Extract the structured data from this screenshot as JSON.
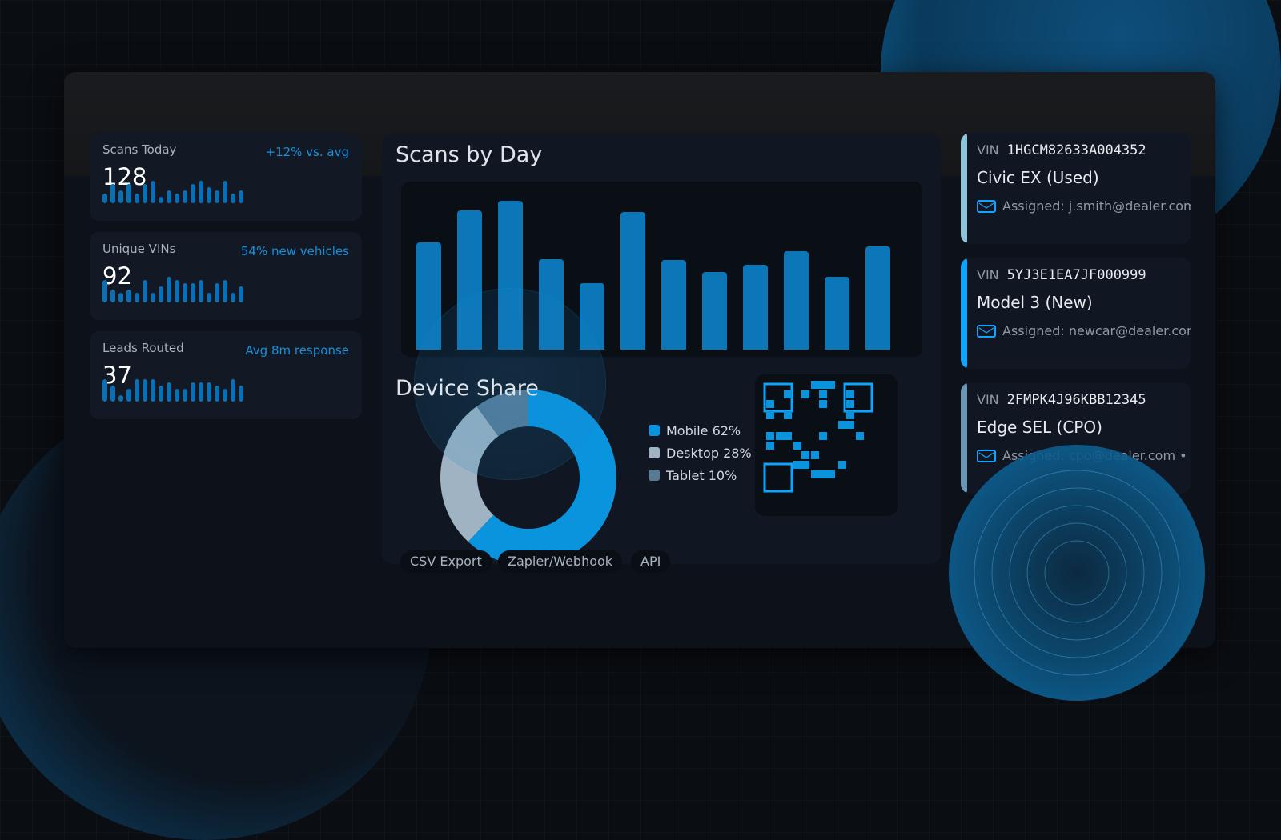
{
  "kpis": [
    {
      "label": "Scans Today",
      "value": "128",
      "note": "+12% vs. avg",
      "spark": [
        2,
        5,
        3,
        5,
        2,
        5,
        6,
        1,
        3,
        2,
        3,
        5,
        6,
        4,
        3,
        6,
        2,
        3
      ]
    },
    {
      "label": "Unique VINs",
      "value": "92",
      "note": "54% new vehicles",
      "spark": [
        6,
        3,
        2,
        3,
        2,
        6,
        2,
        4,
        7,
        6,
        5,
        5,
        6,
        2,
        5,
        6,
        2,
        4
      ]
    },
    {
      "label": "Leads Routed",
      "value": "37",
      "note": "Avg 8m response",
      "spark": [
        6,
        4,
        1,
        3,
        6,
        6,
        6,
        4,
        5,
        3,
        3,
        5,
        5,
        5,
        4,
        3,
        6,
        4
      ]
    }
  ],
  "colors": {
    "accent": "#0b94de",
    "desktop": "#9fb3c2",
    "tablet": "#5a7a94"
  },
  "scans_chart": {
    "title": "Scans by Day",
    "values": [
      121,
      157,
      167,
      102,
      75,
      155,
      101,
      87,
      95,
      111,
      82,
      116
    ]
  },
  "device_share": {
    "title": "Device Share",
    "items": [
      {
        "label": "Mobile 62%",
        "value": 62,
        "color": "#0b94de"
      },
      {
        "label": "Desktop 28%",
        "value": 28,
        "color": "#9fb3c2"
      },
      {
        "label": "Tablet 10%",
        "value": 10,
        "color": "#5a7a94"
      }
    ]
  },
  "integrations": [
    "CSV Export",
    "Zapier/Webhook",
    "API"
  ],
  "vehicles": [
    {
      "vin_label": "VIN",
      "vin": "1HGCM82633A004352",
      "model": "Civic EX (Used)",
      "assigned": "Assigned: j.smith@dealer.com",
      "accent": "#8ec3d8",
      "icon": "mail-icon"
    },
    {
      "vin_label": "VIN",
      "vin": "5YJ3E1EA7JF000999",
      "model": "Model 3 (New)",
      "assigned": "Assigned: newcar@dealer.com",
      "accent": "#0ea5ff",
      "icon": "mail-icon"
    },
    {
      "vin_label": "VIN",
      "vin": "2FMPK4J96KBB12345",
      "model": "Edge SEL (CPO)",
      "assigned": "Assigned: cpo@dealer.com  •",
      "accent": "#6a96b4",
      "icon": "mail-icon"
    }
  ]
}
